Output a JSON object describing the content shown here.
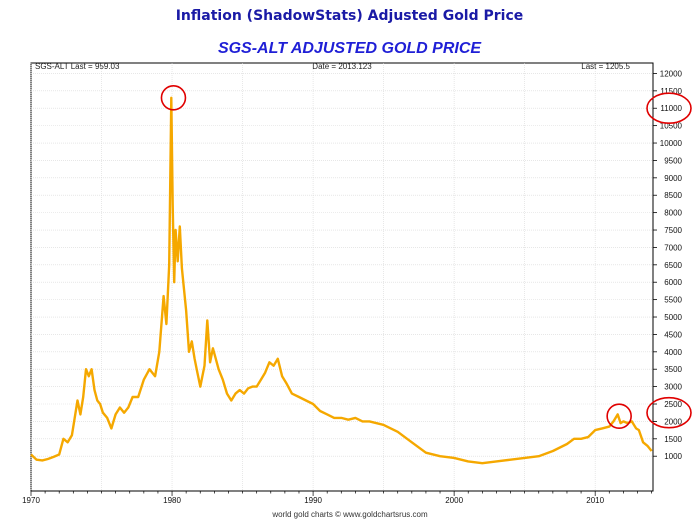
{
  "page_title": "Inflation (ShadowStats) Adjusted Gold Price",
  "chart_data": {
    "type": "line",
    "title": "SGS-ALT ADJUSTED  GOLD PRICE",
    "header_left": "SGS-ALT Last = 959.03",
    "header_center": "Date = 2013.123",
    "header_right": "Last = 1205.5",
    "footer": "world gold charts © www.goldchartsrus.com",
    "xlim": [
      1970,
      2014.1
    ],
    "ylim": [
      0,
      12300
    ],
    "x_ticks": [
      1970,
      1980,
      1990,
      2000,
      2010
    ],
    "y_ticks": [
      1000,
      1500,
      2000,
      2500,
      3000,
      3500,
      4000,
      4500,
      5000,
      5500,
      6000,
      6500,
      7000,
      7500,
      8000,
      8500,
      9000,
      9500,
      10000,
      10500,
      11000,
      11500,
      12000
    ],
    "grid": true,
    "line_color": "#f5a800",
    "highlight_color": "#e00000",
    "series": [
      {
        "x": [
          1970.0,
          1970.4,
          1970.8,
          1971.2,
          1971.6,
          1972.0,
          1972.3,
          1972.6,
          1972.9,
          1973.1,
          1973.3,
          1973.5,
          1973.7,
          1973.9,
          1974.1,
          1974.3,
          1974.5,
          1974.7,
          1974.9,
          1975.1,
          1975.4,
          1975.7,
          1976.0,
          1976.3,
          1976.6,
          1976.9,
          1977.2,
          1977.6,
          1978.0,
          1978.4,
          1978.8,
          1979.1,
          1979.4,
          1979.6,
          1979.8,
          1979.95,
          1980.05,
          1980.15,
          1980.25,
          1980.4,
          1980.55,
          1980.7,
          1980.85,
          1981.0,
          1981.2,
          1981.4,
          1981.6,
          1981.8,
          1982.0,
          1982.3,
          1982.5,
          1982.7,
          1982.9,
          1983.1,
          1983.3,
          1983.6,
          1983.9,
          1984.2,
          1984.5,
          1984.8,
          1985.1,
          1985.4,
          1985.7,
          1986.0,
          1986.3,
          1986.6,
          1986.9,
          1987.2,
          1987.5,
          1987.8,
          1988.1,
          1988.5,
          1989.0,
          1989.5,
          1990.0,
          1990.5,
          1991.0,
          1991.5,
          1992.0,
          1992.5,
          1993.0,
          1993.5,
          1994.0,
          1995.0,
          1996.0,
          1997.0,
          1998.0,
          1999.0,
          2000.0,
          2001.0,
          2002.0,
          2003.0,
          2004.0,
          2005.0,
          2006.0,
          2007.0,
          2008.0,
          2008.5,
          2009.0,
          2009.5,
          2010.0,
          2010.5,
          2011.0,
          2011.3,
          2011.6,
          2011.8,
          2012.0,
          2012.3,
          2012.6,
          2012.9,
          2013.1,
          2013.4,
          2013.7,
          2014.0
        ],
        "y": [
          1050,
          900,
          880,
          920,
          980,
          1050,
          1500,
          1400,
          1600,
          2100,
          2600,
          2200,
          2700,
          3500,
          3300,
          3500,
          2900,
          2600,
          2500,
          2250,
          2100,
          1800,
          2200,
          2400,
          2250,
          2400,
          2700,
          2700,
          3200,
          3500,
          3300,
          4000,
          5600,
          4800,
          6500,
          11300,
          8200,
          6000,
          7500,
          6600,
          7600,
          6400,
          5800,
          5200,
          4000,
          4300,
          3800,
          3400,
          3000,
          3600,
          4900,
          3700,
          4100,
          3800,
          3500,
          3200,
          2800,
          2600,
          2800,
          2900,
          2800,
          2950,
          3000,
          3000,
          3200,
          3400,
          3700,
          3600,
          3800,
          3300,
          3100,
          2800,
          2700,
          2600,
          2500,
          2300,
          2200,
          2100,
          2100,
          2050,
          2100,
          2000,
          2000,
          1900,
          1700,
          1400,
          1100,
          1000,
          950,
          850,
          800,
          850,
          900,
          950,
          1000,
          1150,
          1350,
          1500,
          1500,
          1550,
          1750,
          1800,
          1850,
          2000,
          2200,
          1950,
          2000,
          1950,
          2000,
          1800,
          1750,
          1400,
          1300,
          1150
        ]
      }
    ],
    "annotations": [
      {
        "x": 1980.1,
        "y": 11300,
        "shape": "circle"
      },
      {
        "x": 2011.7,
        "y": 2150,
        "shape": "circle"
      },
      {
        "y": 11000,
        "shape": "ellipse-on-axis"
      },
      {
        "y": 2250,
        "shape": "ellipse-on-axis"
      }
    ]
  }
}
